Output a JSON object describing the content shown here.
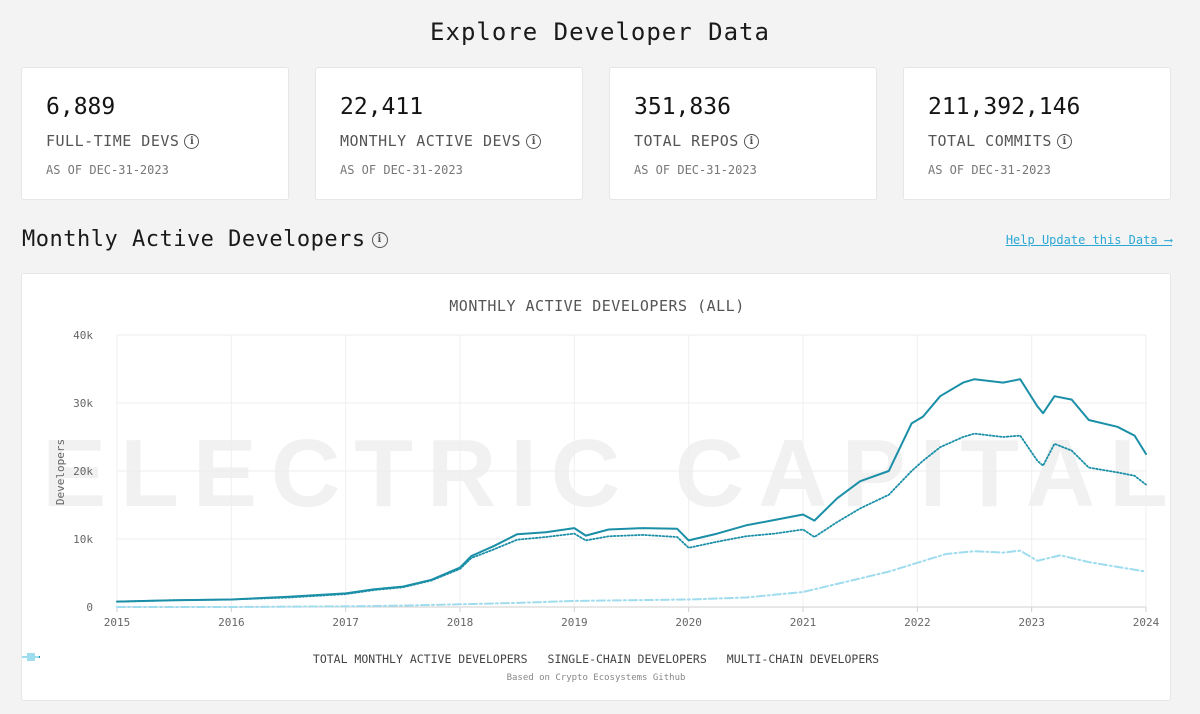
{
  "page": {
    "title": "Explore Developer Data"
  },
  "stats": [
    {
      "value": "6,889",
      "label": "FULL-TIME DEVS",
      "date": "AS OF DEC-31-2023"
    },
    {
      "value": "22,411",
      "label": "MONTHLY ACTIVE DEVS",
      "date": "AS OF DEC-31-2023"
    },
    {
      "value": "351,836",
      "label": "TOTAL REPOS",
      "date": "AS OF DEC-31-2023"
    },
    {
      "value": "211,392,146",
      "label": "TOTAL COMMITS",
      "date": "AS OF DEC-31-2023"
    }
  ],
  "section": {
    "title": "Monthly Active Developers",
    "help_link": "Help Update this Data ⟶"
  },
  "icons": {
    "info": "info-icon"
  },
  "colors": {
    "total": "#1a8fa7",
    "single": "#1a8fa7",
    "multi": "#9fdcee",
    "link": "#2aa7d4"
  },
  "watermark": "ELECTRIC CAPITAL",
  "source_note": "Based on Crypto Ecosystems Github",
  "chart_data": {
    "type": "line",
    "title": "MONTHLY ACTIVE DEVELOPERS (ALL)",
    "ylabel": "Developers",
    "xlabel": "",
    "xlim": [
      2015,
      2024
    ],
    "ylim": [
      0,
      40000
    ],
    "y_ticks": [
      0,
      10000,
      20000,
      30000,
      40000
    ],
    "y_tick_labels": [
      "0",
      "10k",
      "20k",
      "30k",
      "40k"
    ],
    "x_ticks": [
      "2015",
      "2016",
      "2017",
      "2018",
      "2019",
      "2020",
      "2021",
      "2022",
      "2023",
      "2024"
    ],
    "grid": true,
    "legend_position": "bottom",
    "series": [
      {
        "name": "TOTAL MONTHLY ACTIVE DEVELOPERS",
        "style": "solid",
        "x": [
          2015.0,
          2015.5,
          2016.0,
          2016.5,
          2017.0,
          2017.25,
          2017.5,
          2017.75,
          2018.0,
          2018.1,
          2018.3,
          2018.5,
          2018.75,
          2019.0,
          2019.1,
          2019.3,
          2019.6,
          2019.9,
          2020.0,
          2020.25,
          2020.5,
          2020.75,
          2021.0,
          2021.1,
          2021.3,
          2021.5,
          2021.75,
          2021.95,
          2022.05,
          2022.2,
          2022.4,
          2022.5,
          2022.75,
          2022.9,
          2023.05,
          2023.1,
          2023.2,
          2023.35,
          2023.5,
          2023.75,
          2023.9,
          2024.0
        ],
        "values": [
          800,
          1000,
          1100,
          1500,
          2000,
          2600,
          3000,
          4000,
          5800,
          7500,
          9000,
          10700,
          11000,
          11600,
          10500,
          11400,
          11600,
          11500,
          9800,
          10800,
          12000,
          12800,
          13600,
          12700,
          16000,
          18500,
          20000,
          27000,
          28000,
          31000,
          33000,
          33500,
          33000,
          33500,
          29500,
          28500,
          31000,
          30500,
          27500,
          26500,
          25200,
          22500
        ]
      },
      {
        "name": "SINGLE-CHAIN DEVELOPERS",
        "style": "dotted",
        "x": [
          2015.0,
          2015.5,
          2016.0,
          2016.5,
          2017.0,
          2017.25,
          2017.5,
          2017.75,
          2018.0,
          2018.1,
          2018.3,
          2018.5,
          2018.75,
          2019.0,
          2019.1,
          2019.3,
          2019.6,
          2019.9,
          2020.0,
          2020.25,
          2020.5,
          2020.75,
          2021.0,
          2021.1,
          2021.3,
          2021.5,
          2021.75,
          2021.95,
          2022.05,
          2022.2,
          2022.4,
          2022.5,
          2022.75,
          2022.9,
          2023.05,
          2023.1,
          2023.2,
          2023.35,
          2023.5,
          2023.75,
          2023.9,
          2024.0
        ],
        "values": [
          800,
          1000,
          1100,
          1400,
          1900,
          2500,
          2900,
          3900,
          5600,
          7200,
          8500,
          9900,
          10300,
          10800,
          9800,
          10400,
          10600,
          10300,
          8700,
          9600,
          10400,
          10800,
          11400,
          10300,
          12500,
          14500,
          16500,
          20000,
          21500,
          23500,
          25000,
          25500,
          25000,
          25200,
          21500,
          20800,
          24000,
          23000,
          20500,
          19800,
          19300,
          18000
        ]
      },
      {
        "name": "MULTI-CHAIN DEVELOPERS",
        "style": "dashdot",
        "x": [
          2015.0,
          2016.0,
          2017.0,
          2017.5,
          2018.0,
          2018.5,
          2019.0,
          2019.5,
          2020.0,
          2020.5,
          2021.0,
          2021.25,
          2021.5,
          2021.75,
          2022.0,
          2022.25,
          2022.5,
          2022.75,
          2022.9,
          2023.05,
          2023.25,
          2023.5,
          2023.75,
          2024.0
        ],
        "values": [
          0,
          0,
          100,
          200,
          400,
          600,
          900,
          1000,
          1100,
          1400,
          2200,
          3200,
          4200,
          5200,
          6500,
          7800,
          8200,
          8000,
          8300,
          6800,
          7600,
          6600,
          5900,
          5200
        ]
      }
    ]
  }
}
